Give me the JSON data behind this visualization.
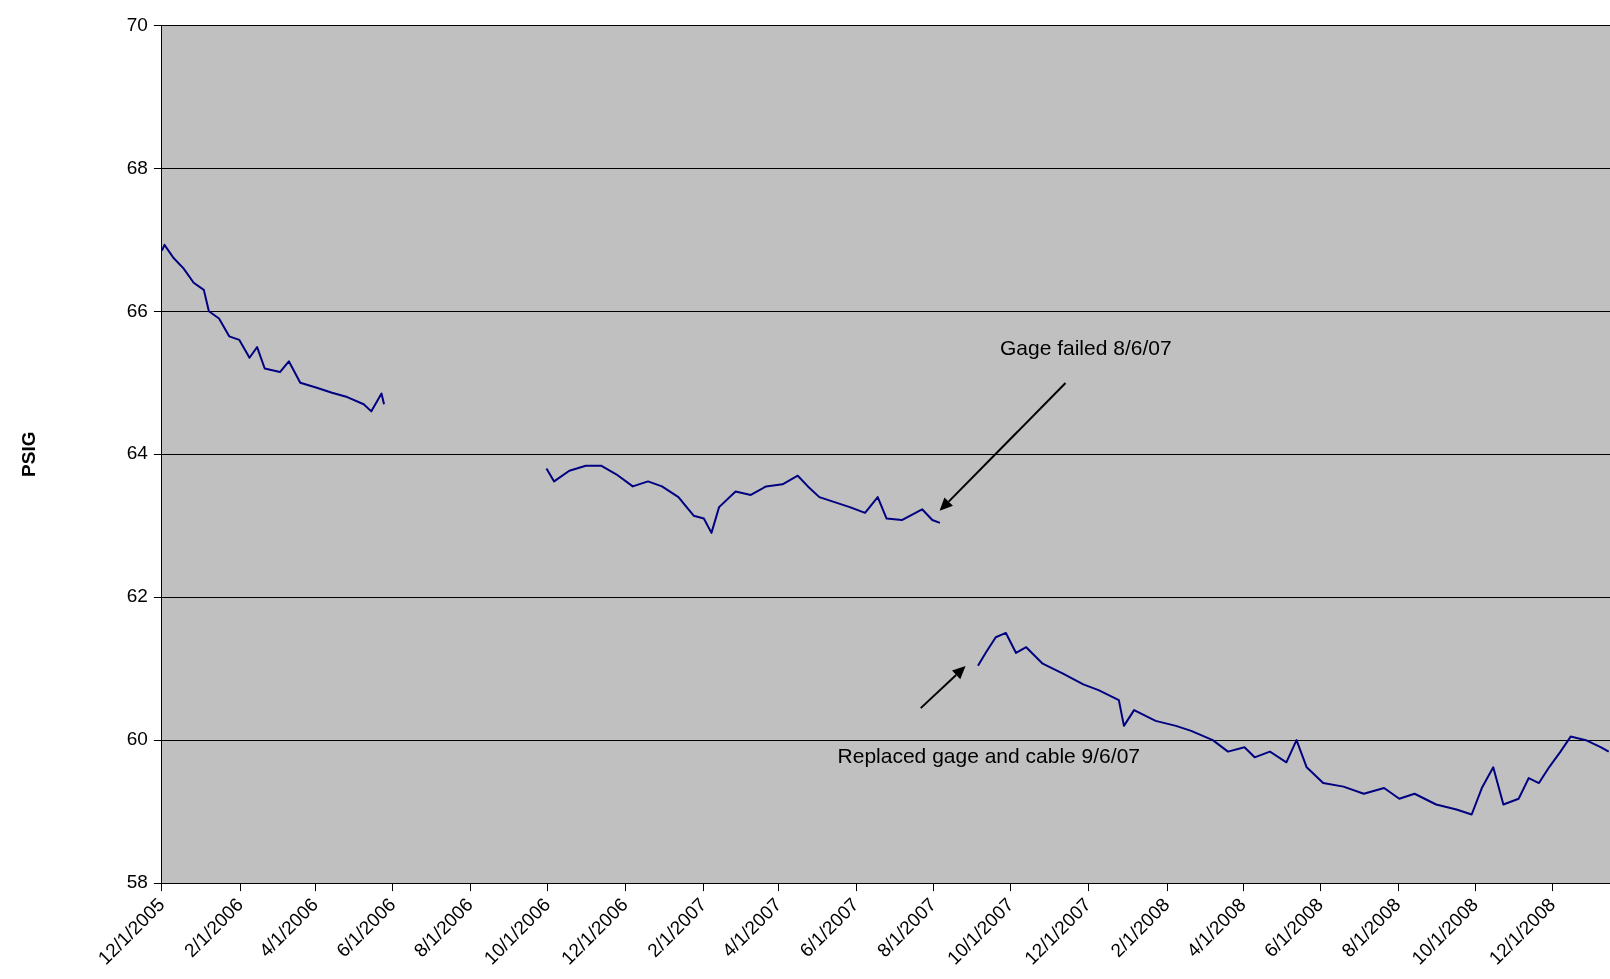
{
  "chart_data": {
    "type": "line",
    "ylabel": "PSIG",
    "x": [
      "2005-12-01",
      "2005-12-03",
      "2005-12-10",
      "2005-12-18",
      "2005-12-26",
      "2006-01-03",
      "2006-01-07",
      "2006-01-15",
      "2006-01-23",
      "2006-01-31",
      "2006-02-08",
      "2006-02-14",
      "2006-02-20",
      "2006-03-04",
      "2006-03-11",
      "2006-03-20",
      "2006-04-02",
      "2006-04-14",
      "2006-04-26",
      "2006-05-09",
      "2006-05-15",
      "2006-05-23",
      "2006-05-25",
      "2006-07-15",
      "2006-09-30",
      "2006-10-06",
      "2006-10-18",
      "2006-10-31",
      "2006-11-12",
      "2006-11-24",
      "2006-12-07",
      "2006-12-19",
      "2006-12-30",
      "2007-01-12",
      "2007-01-24",
      "2007-02-01",
      "2007-02-07",
      "2007-02-13",
      "2007-02-26",
      "2007-03-10",
      "2007-03-22",
      "2007-04-04",
      "2007-04-16",
      "2007-04-24",
      "2007-05-03",
      "2007-05-15",
      "2007-05-27",
      "2007-06-08",
      "2007-06-18",
      "2007-06-25",
      "2007-07-07",
      "2007-07-23",
      "2007-07-31",
      "2007-08-06",
      "2007-08-20",
      "2007-09-05",
      "2007-09-11",
      "2007-09-19",
      "2007-09-27",
      "2007-10-05",
      "2007-10-13",
      "2007-10-26",
      "2007-11-11",
      "2007-11-27",
      "2007-12-09",
      "2007-12-25",
      "2007-12-29",
      "2008-01-06",
      "2008-01-23",
      "2008-02-08",
      "2008-02-20",
      "2008-03-08",
      "2008-03-20",
      "2008-04-02",
      "2008-04-10",
      "2008-04-22",
      "2008-05-05",
      "2008-05-13",
      "2008-05-21",
      "2008-06-03",
      "2008-06-19",
      "2008-07-05",
      "2008-07-21",
      "2008-08-02",
      "2008-08-14",
      "2008-08-31",
      "2008-09-16",
      "2008-09-28",
      "2008-10-06",
      "2008-10-15",
      "2008-10-23",
      "2008-11-04",
      "2008-11-12",
      "2008-11-20",
      "2008-11-28",
      "2008-12-07",
      "2008-12-15",
      "2008-12-27",
      "2009-01-08",
      "2009-01-14"
    ],
    "series": [
      {
        "color": "#000080",
        "values": [
          66.85,
          66.93,
          66.75,
          66.6,
          66.4,
          66.3,
          66.0,
          65.9,
          65.65,
          65.6,
          65.35,
          65.5,
          65.2,
          65.15,
          65.3,
          65.0,
          64.93,
          64.86,
          64.8,
          64.7,
          64.6,
          64.85,
          64.7,
          null,
          63.8,
          63.62,
          63.77,
          63.84,
          63.84,
          63.72,
          63.55,
          63.62,
          63.55,
          63.4,
          63.14,
          63.1,
          62.9,
          63.26,
          63.48,
          63.43,
          63.55,
          63.58,
          63.7,
          63.55,
          63.4,
          63.33,
          63.26,
          63.18,
          63.4,
          63.1,
          63.08,
          63.23,
          63.08,
          63.04,
          null,
          61.04,
          61.22,
          61.44,
          61.5,
          61.22,
          61.3,
          61.07,
          60.93,
          60.78,
          60.7,
          60.56,
          60.2,
          60.42,
          60.27,
          60.2,
          60.13,
          60.0,
          59.84,
          59.9,
          59.76,
          59.84,
          59.69,
          60.0,
          59.62,
          59.4,
          59.35,
          59.25,
          59.33,
          59.18,
          59.25,
          59.1,
          59.03,
          58.96,
          59.33,
          59.62,
          59.1,
          59.18,
          59.47,
          59.4,
          59.62,
          59.84,
          60.05,
          60.0,
          59.9,
          59.84
        ]
      }
    ],
    "xlim": [
      "2005-12-01",
      "2009-01-15"
    ],
    "xticks": [
      {
        "value": "2005-12-01",
        "label": "12/1/2005"
      },
      {
        "value": "2006-02-01",
        "label": "2/1/2006"
      },
      {
        "value": "2006-04-01",
        "label": "4/1/2006"
      },
      {
        "value": "2006-06-01",
        "label": "6/1/2006"
      },
      {
        "value": "2006-08-01",
        "label": "8/1/2006"
      },
      {
        "value": "2006-10-01",
        "label": "10/1/2006"
      },
      {
        "value": "2006-12-01",
        "label": "12/1/2006"
      },
      {
        "value": "2007-02-01",
        "label": "2/1/2007"
      },
      {
        "value": "2007-04-01",
        "label": "4/1/2007"
      },
      {
        "value": "2007-06-01",
        "label": "6/1/2007"
      },
      {
        "value": "2007-08-01",
        "label": "8/1/2007"
      },
      {
        "value": "2007-10-01",
        "label": "10/1/2007"
      },
      {
        "value": "2007-12-01",
        "label": "12/1/2007"
      },
      {
        "value": "2008-02-01",
        "label": "2/1/2008"
      },
      {
        "value": "2008-04-01",
        "label": "4/1/2008"
      },
      {
        "value": "2008-06-01",
        "label": "6/1/2008"
      },
      {
        "value": "2008-08-01",
        "label": "8/1/2008"
      },
      {
        "value": "2008-10-01",
        "label": "10/1/2008"
      },
      {
        "value": "2008-12-01",
        "label": "12/1/2008"
      }
    ],
    "ylim": [
      58,
      70
    ],
    "yticks": [
      58,
      60,
      62,
      64,
      66,
      68,
      70
    ],
    "grid": "y",
    "marker": "none",
    "line_style": "solid",
    "legend": false,
    "annotations": [
      "Gage failed 8/6/07",
      "Replaced gage and cable 9/6/07"
    ]
  }
}
